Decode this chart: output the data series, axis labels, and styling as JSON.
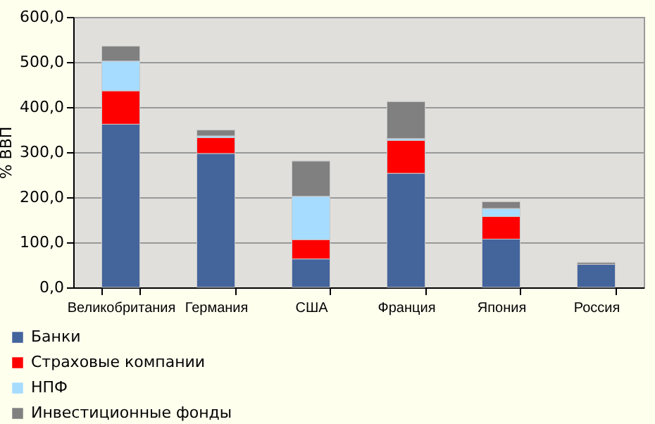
{
  "chart_data": {
    "type": "bar",
    "stacked": true,
    "ylabel": "% ВВП",
    "categories": [
      "Великобритания",
      "Германия",
      "США",
      "Франция",
      "Япония",
      "Россия"
    ],
    "series": [
      {
        "name": "Банки",
        "color": "#44649c",
        "values": [
          362,
          297,
          63,
          253,
          107,
          51
        ]
      },
      {
        "name": "Страховые компании",
        "color": "#ff0000",
        "values": [
          74,
          35,
          43,
          73,
          50,
          null
        ]
      },
      {
        "name": "НПФ",
        "color": "#a6dcff",
        "values": [
          66,
          4,
          96,
          4,
          18,
          null
        ]
      },
      {
        "name": "Инвестиционные фонды",
        "color": "#808080",
        "values": [
          33,
          13,
          78,
          82,
          15,
          4
        ]
      }
    ],
    "ylim": [
      0,
      600
    ],
    "yticks": [
      {
        "value": 0,
        "label": "0,0"
      },
      {
        "value": 100,
        "label": "100,0"
      },
      {
        "value": 200,
        "label": "200,0"
      },
      {
        "value": 300,
        "label": "300,0"
      },
      {
        "value": 400,
        "label": "400,0"
      },
      {
        "value": 500,
        "label": "500,0"
      },
      {
        "value": 600,
        "label": "600,0"
      }
    ],
    "grid": "y",
    "legend": "bottom left"
  }
}
